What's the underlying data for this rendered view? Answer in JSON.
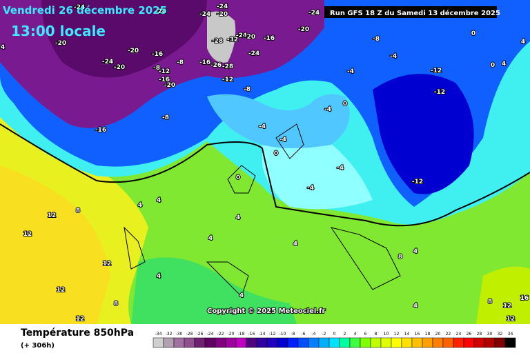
{
  "header": {
    "date": "Vendredi 26 décembre 2025",
    "time": "13:00 locale",
    "run": "Run GFS 18 Z du Samedi 13 décembre 2025"
  },
  "map": {
    "copyright": "Copyright © 2025 Meteociel.fr",
    "contour_labels": [
      -24,
      -24,
      -24,
      -24,
      -20,
      -24,
      -20,
      -20,
      -20,
      -16,
      -24,
      -20,
      -8,
      -12,
      -16,
      -20,
      -8,
      -16,
      -28,
      -32,
      -24,
      -20,
      -16,
      -24,
      -26,
      -28,
      -12,
      -8,
      -8,
      -16,
      -4,
      -8,
      -4,
      -4,
      -12,
      -12,
      -12,
      -4,
      -4,
      0,
      4,
      0,
      4,
      4,
      4,
      8,
      12,
      12,
      4,
      4,
      4,
      8,
      4,
      4,
      8,
      12,
      12,
      12,
      4,
      4,
      8,
      12,
      12,
      16,
      4,
      0,
      0,
      0,
      -4,
      -4
    ]
  },
  "footer": {
    "title": "Température 850hPa",
    "lead": "(+ 306h)",
    "scale": {
      "values": [
        -34,
        -32,
        -30,
        -28,
        -26,
        -24,
        -22,
        -20,
        -18,
        -16,
        -14,
        -12,
        -10,
        -8,
        -6,
        -4,
        -2,
        0,
        2,
        4,
        6,
        8,
        10,
        12,
        14,
        16,
        18,
        20,
        22,
        24,
        26,
        28,
        30,
        32,
        34
      ],
      "colors": [
        "#d0d0d0",
        "#b0a0b0",
        "#a070a0",
        "#905090",
        "#702070",
        "#600060",
        "#800080",
        "#a000a0",
        "#c000c0",
        "#500080",
        "#3000a0",
        "#2000c0",
        "#0000d0",
        "#0020ff",
        "#0050ff",
        "#0080ff",
        "#00b0ff",
        "#00e0ff",
        "#00ffa0",
        "#40ff40",
        "#80ff00",
        "#c0ff00",
        "#e0ff00",
        "#ffff00",
        "#ffe000",
        "#ffc000",
        "#ffa000",
        "#ff8000",
        "#ff6000",
        "#ff2000",
        "#ff0000",
        "#d00000",
        "#b00000",
        "#800000",
        "#000000"
      ]
    }
  }
}
